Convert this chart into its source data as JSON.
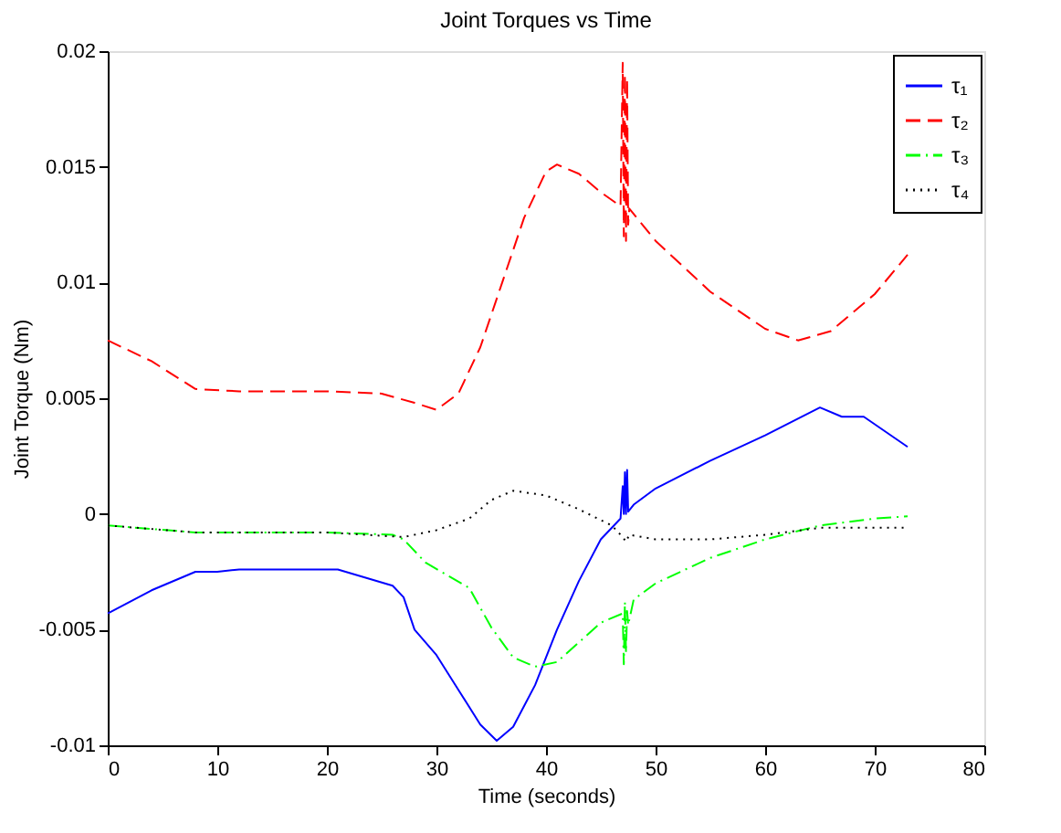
{
  "chart_data": {
    "type": "line",
    "title": "Joint Torques vs Time",
    "xlabel": "Time (seconds)",
    "ylabel": "Joint Torque (Nm)",
    "xlim": [
      0,
      80
    ],
    "xticks": [
      0,
      10,
      20,
      30,
      40,
      50,
      60,
      70,
      80
    ],
    "ylim": [
      -0.01,
      0.02
    ],
    "yticks": [
      -0.01,
      -0.005,
      0,
      0.005,
      0.01,
      0.015,
      0.02
    ],
    "grid": false,
    "legend": "top right",
    "marker": "none",
    "series": [
      {
        "name": "τ₁",
        "color": "#0000ff",
        "line_style": "solid",
        "x": [
          0,
          4,
          8,
          10,
          12,
          21,
          26,
          27,
          28,
          30,
          32,
          34,
          35.5,
          37,
          39,
          41,
          43,
          45,
          46.8,
          47,
          47.1,
          47.2,
          47.3,
          47.4,
          47.5,
          48,
          50,
          55,
          60,
          65,
          67,
          69,
          73
        ],
        "values": [
          -0.0043,
          -0.0033,
          -0.0025,
          -0.0025,
          -0.0024,
          -0.0024,
          -0.0031,
          -0.0036,
          -0.005,
          -0.0061,
          -0.0076,
          -0.0091,
          -0.0098,
          -0.0092,
          -0.0074,
          -0.005,
          -0.0029,
          -0.0011,
          -0.0002,
          0.0012,
          0,
          0.0018,
          0,
          0.0019,
          0.0001,
          0.0004,
          0.0011,
          0.0023,
          0.0034,
          0.0046,
          0.0042,
          0.0042,
          0.0029
        ]
      },
      {
        "name": "τ₂",
        "color": "#ff0000",
        "line_style": "dashed",
        "x": [
          0,
          4,
          8,
          12,
          20,
          25,
          28,
          30,
          32,
          34,
          36,
          38,
          40,
          41,
          43,
          45,
          46.8,
          47,
          47.1,
          47.2,
          47.3,
          47.4,
          47.5,
          47.6,
          50,
          55,
          60,
          63,
          66,
          70,
          73
        ],
        "values": [
          0.0075,
          0.0066,
          0.0054,
          0.0053,
          0.0053,
          0.0052,
          0.0048,
          0.0045,
          0.0052,
          0.0072,
          0.01,
          0.0128,
          0.0148,
          0.0151,
          0.0147,
          0.0139,
          0.0133,
          0.0195,
          0.012,
          0.019,
          0.0118,
          0.0188,
          0.0125,
          0.0132,
          0.0118,
          0.0096,
          0.008,
          0.0075,
          0.0079,
          0.0095,
          0.0112
        ]
      },
      {
        "name": "τ₃",
        "color": "#00ff00",
        "line_style": "dashdot",
        "x": [
          0,
          8,
          20,
          26,
          27,
          29,
          33,
          35,
          37,
          39,
          41,
          45,
          47,
          47.1,
          47.2,
          47.3,
          47.4,
          47.5,
          48,
          50,
          55,
          60,
          65,
          70,
          73
        ],
        "values": [
          -0.0005,
          -0.0008,
          -0.0008,
          -0.0009,
          -0.0011,
          -0.0021,
          -0.0032,
          -0.0049,
          -0.0062,
          -0.0066,
          -0.0064,
          -0.0047,
          -0.0043,
          -0.0065,
          -0.0038,
          -0.006,
          -0.0042,
          -0.0048,
          -0.0037,
          -0.003,
          -0.0019,
          -0.0011,
          -0.0005,
          -0.0002,
          -0.0001
        ]
      },
      {
        "name": "τ₄",
        "color": "#000000",
        "line_style": "dotted",
        "x": [
          0,
          8,
          20,
          27,
          30,
          33,
          35,
          37,
          40,
          43,
          46,
          47,
          47.3,
          47.6,
          50,
          55,
          60,
          65,
          70,
          73
        ],
        "values": [
          -0.0005,
          -0.0008,
          -0.0008,
          -0.001,
          -0.0007,
          -0.0002,
          0.0006,
          0.001,
          0.0008,
          0.0002,
          -0.0005,
          -0.001,
          -0.0012,
          -0.0009,
          -0.0011,
          -0.0011,
          -0.0009,
          -0.0006,
          -0.0006,
          -0.0006
        ]
      }
    ]
  }
}
